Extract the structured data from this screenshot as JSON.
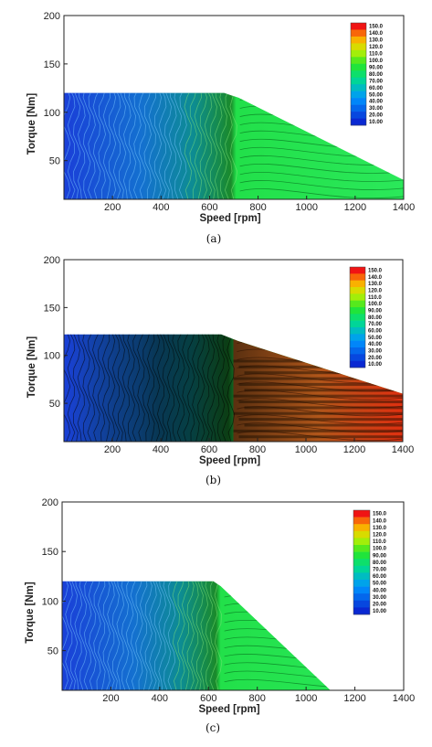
{
  "chart_data": [
    {
      "type": "heatmap",
      "panel": "(a)",
      "caption": "(a)",
      "xlabel": "Speed [rpm]",
      "ylabel": "Torque [Nm]",
      "xlim": [
        0,
        1400
      ],
      "ylim": [
        10,
        200
      ],
      "xticks": [
        "200",
        "400",
        "600",
        "800",
        "1000",
        "1200",
        "1400"
      ],
      "yticks": [
        "50",
        "100",
        "150",
        "200"
      ],
      "legend_position": "top-right",
      "colorbar": [
        "150.0",
        "140.0",
        "130.0",
        "120.0",
        "110.0",
        "100.0",
        "90.00",
        "80.00",
        "70.00",
        "60.00",
        "50.00",
        "40.00",
        "30.00",
        "20.00",
        "10.00"
      ],
      "envelope": {
        "speed": [
          0,
          660,
          720,
          1400
        ],
        "torque": [
          120,
          120,
          115,
          30
        ]
      },
      "step_speed": 710
    },
    {
      "type": "heatmap",
      "panel": "(b)",
      "caption": "(b)",
      "xlabel": "Speed [rpm]",
      "ylabel": "Torque [Nm]",
      "xlim": [
        0,
        1400
      ],
      "ylim": [
        10,
        200
      ],
      "xticks": [
        "200",
        "400",
        "600",
        "800",
        "1000",
        "1200",
        "1400"
      ],
      "yticks": [
        "50",
        "100",
        "150",
        "200"
      ],
      "legend_position": "top-right",
      "colorbar": [
        "150.0",
        "140.0",
        "130.0",
        "120.0",
        "110.0",
        "100.0",
        "90.00",
        "80.00",
        "70.00",
        "60.00",
        "50.00",
        "40.00",
        "30.00",
        "20.00",
        "10.00"
      ],
      "envelope": {
        "speed": [
          0,
          650,
          720,
          1400
        ],
        "torque": [
          122,
          122,
          115,
          60
        ]
      },
      "step_speed": 700
    },
    {
      "type": "heatmap",
      "panel": "(c)",
      "caption": "(c)",
      "xlabel": "Speed [rpm]",
      "ylabel": "Torque [Nm]",
      "xlim": [
        0,
        1400
      ],
      "ylim": [
        10,
        200
      ],
      "xticks": [
        "200",
        "400",
        "600",
        "800",
        "1000",
        "1200",
        "1400"
      ],
      "yticks": [
        "50",
        "100",
        "150",
        "200"
      ],
      "legend_position": "top-right",
      "colorbar": [
        "150.0",
        "140.0",
        "130.0",
        "120.0",
        "110.0",
        "100.0",
        "90.00",
        "80.00",
        "70.00",
        "60.00",
        "50.00",
        "40.00",
        "30.00",
        "20.00",
        "10.00"
      ],
      "envelope": {
        "speed": [
          0,
          620,
          650,
          1100
        ],
        "torque": [
          120,
          120,
          115,
          10
        ]
      },
      "step_speed": 650
    }
  ]
}
